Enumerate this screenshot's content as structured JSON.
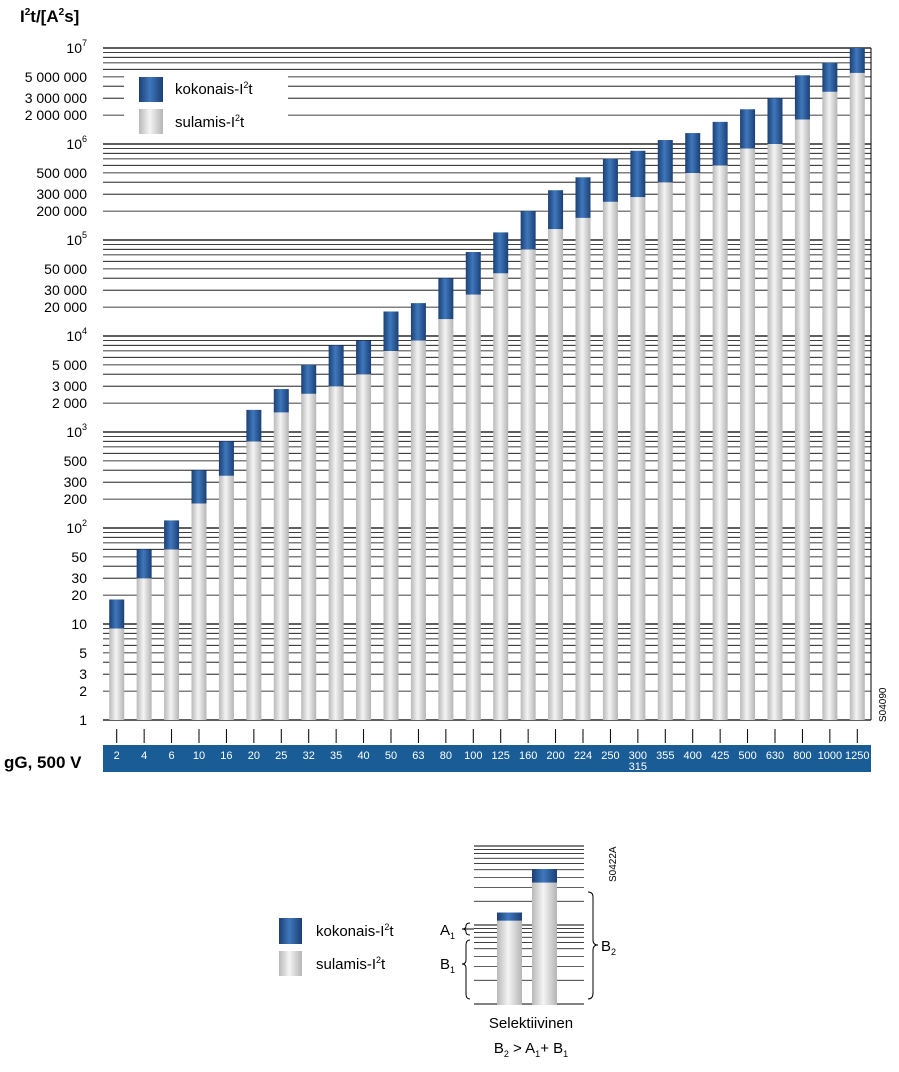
{
  "chart_data": [
    {
      "type": "bar",
      "ylabel": "I²t/[A²s]",
      "ylabel_parts": [
        "I",
        "2",
        "t/[A",
        "2",
        "s]"
      ],
      "yscale": "log",
      "ylim": [
        1,
        10000000
      ],
      "grid": true,
      "legend_position": "top-left",
      "ytick_labels": [
        {
          "value": 1,
          "label": "1"
        },
        {
          "value": 2,
          "label": "2"
        },
        {
          "value": 3,
          "label": "3"
        },
        {
          "value": 5,
          "label": "5"
        },
        {
          "value": 10,
          "label": "10"
        },
        {
          "value": 20,
          "label": "20"
        },
        {
          "value": 30,
          "label": "30"
        },
        {
          "value": 50,
          "label": "50"
        },
        {
          "value": 100,
          "label": "10",
          "exponent": "2"
        },
        {
          "value": 200,
          "label": "200"
        },
        {
          "value": 300,
          "label": "300"
        },
        {
          "value": 500,
          "label": "500"
        },
        {
          "value": 1000,
          "label": "10",
          "exponent": "3"
        },
        {
          "value": 2000,
          "label": "2 000"
        },
        {
          "value": 3000,
          "label": "3 000"
        },
        {
          "value": 5000,
          "label": "5 000"
        },
        {
          "value": 10000,
          "label": "10",
          "exponent": "4"
        },
        {
          "value": 20000,
          "label": "20 000"
        },
        {
          "value": 30000,
          "label": "30 000"
        },
        {
          "value": 50000,
          "label": "50 000"
        },
        {
          "value": 100000,
          "label": "10",
          "exponent": "5"
        },
        {
          "value": 200000,
          "label": "200 000"
        },
        {
          "value": 300000,
          "label": "300 000"
        },
        {
          "value": 500000,
          "label": "500 000"
        },
        {
          "value": 1000000,
          "label": "10",
          "exponent": "6"
        },
        {
          "value": 2000000,
          "label": "2 000 000"
        },
        {
          "value": 3000000,
          "label": "3 000 000"
        },
        {
          "value": 5000000,
          "label": "5 000 000"
        },
        {
          "value": 10000000,
          "label": "10",
          "exponent": "7"
        }
      ],
      "x_axis_title": "gG, 500 V",
      "categories": [
        "2",
        "4",
        "6",
        "10",
        "16",
        "20",
        "25",
        "32",
        "35",
        "40",
        "50",
        "63",
        "80",
        "100",
        "125",
        "160",
        "200",
        "224",
        "250",
        "300",
        "355",
        "400",
        "425",
        "500",
        "630",
        "800",
        "1000",
        "1250"
      ],
      "category_sublabels": {
        "300": "315"
      },
      "series": [
        {
          "name": "sulamis-I²t",
          "name_parts": [
            "sulamis-I",
            "2",
            "t"
          ],
          "color": "#d4d4d4",
          "values": [
            9,
            30,
            60,
            180,
            350,
            800,
            1600,
            2500,
            3000,
            4000,
            7000,
            9000,
            15000,
            27000,
            45000,
            80000,
            130000,
            170000,
            250000,
            280000,
            400000,
            500000,
            600000,
            900000,
            1000000,
            1800000,
            3500000,
            5500000
          ]
        },
        {
          "name": "kokonais-I²t",
          "name_parts": [
            "kokonais-I",
            "2",
            "t"
          ],
          "color": "#2b5e9c",
          "values": [
            18,
            60,
            120,
            400,
            800,
            1700,
            2800,
            5000,
            8000,
            9000,
            18000,
            22000,
            40000,
            75000,
            120000,
            200000,
            330000,
            450000,
            700000,
            850000,
            1100000,
            1300000,
            1700000,
            2300000,
            3000000,
            5200000,
            7000000,
            10500000
          ]
        }
      ],
      "annotation": "S04090"
    },
    {
      "type": "bar",
      "legend_position": "left",
      "grid": true,
      "title": "Selektiivinen",
      "formula": {
        "parts": [
          {
            "text": "B",
            "sub": "2"
          },
          {
            "text": " > "
          },
          {
            "text": "A",
            "sub": "1"
          },
          {
            "text": "+ "
          },
          {
            "text": "B",
            "sub": "1"
          }
        ]
      },
      "bars": [
        {
          "name": "A",
          "sub": "1",
          "melting_fraction": 0.62,
          "total_fraction": 0.68
        },
        {
          "name": "B",
          "sub": "2",
          "melting_fraction": 0.9,
          "total_fraction": 1.0
        }
      ],
      "labels": [
        {
          "text": "A",
          "sub": "1"
        },
        {
          "text": "B",
          "sub": "1"
        },
        {
          "text": "B",
          "sub": "2"
        }
      ],
      "series": [
        {
          "name": "kokonais-I²t",
          "name_parts": [
            "kokonais-I",
            "2",
            "t"
          ],
          "color": "#2b5e9c"
        },
        {
          "name": "sulamis-I²t",
          "name_parts": [
            "sulamis-I",
            "2",
            "t"
          ],
          "color": "#d4d4d4"
        }
      ],
      "annotation": "S0422A"
    }
  ]
}
